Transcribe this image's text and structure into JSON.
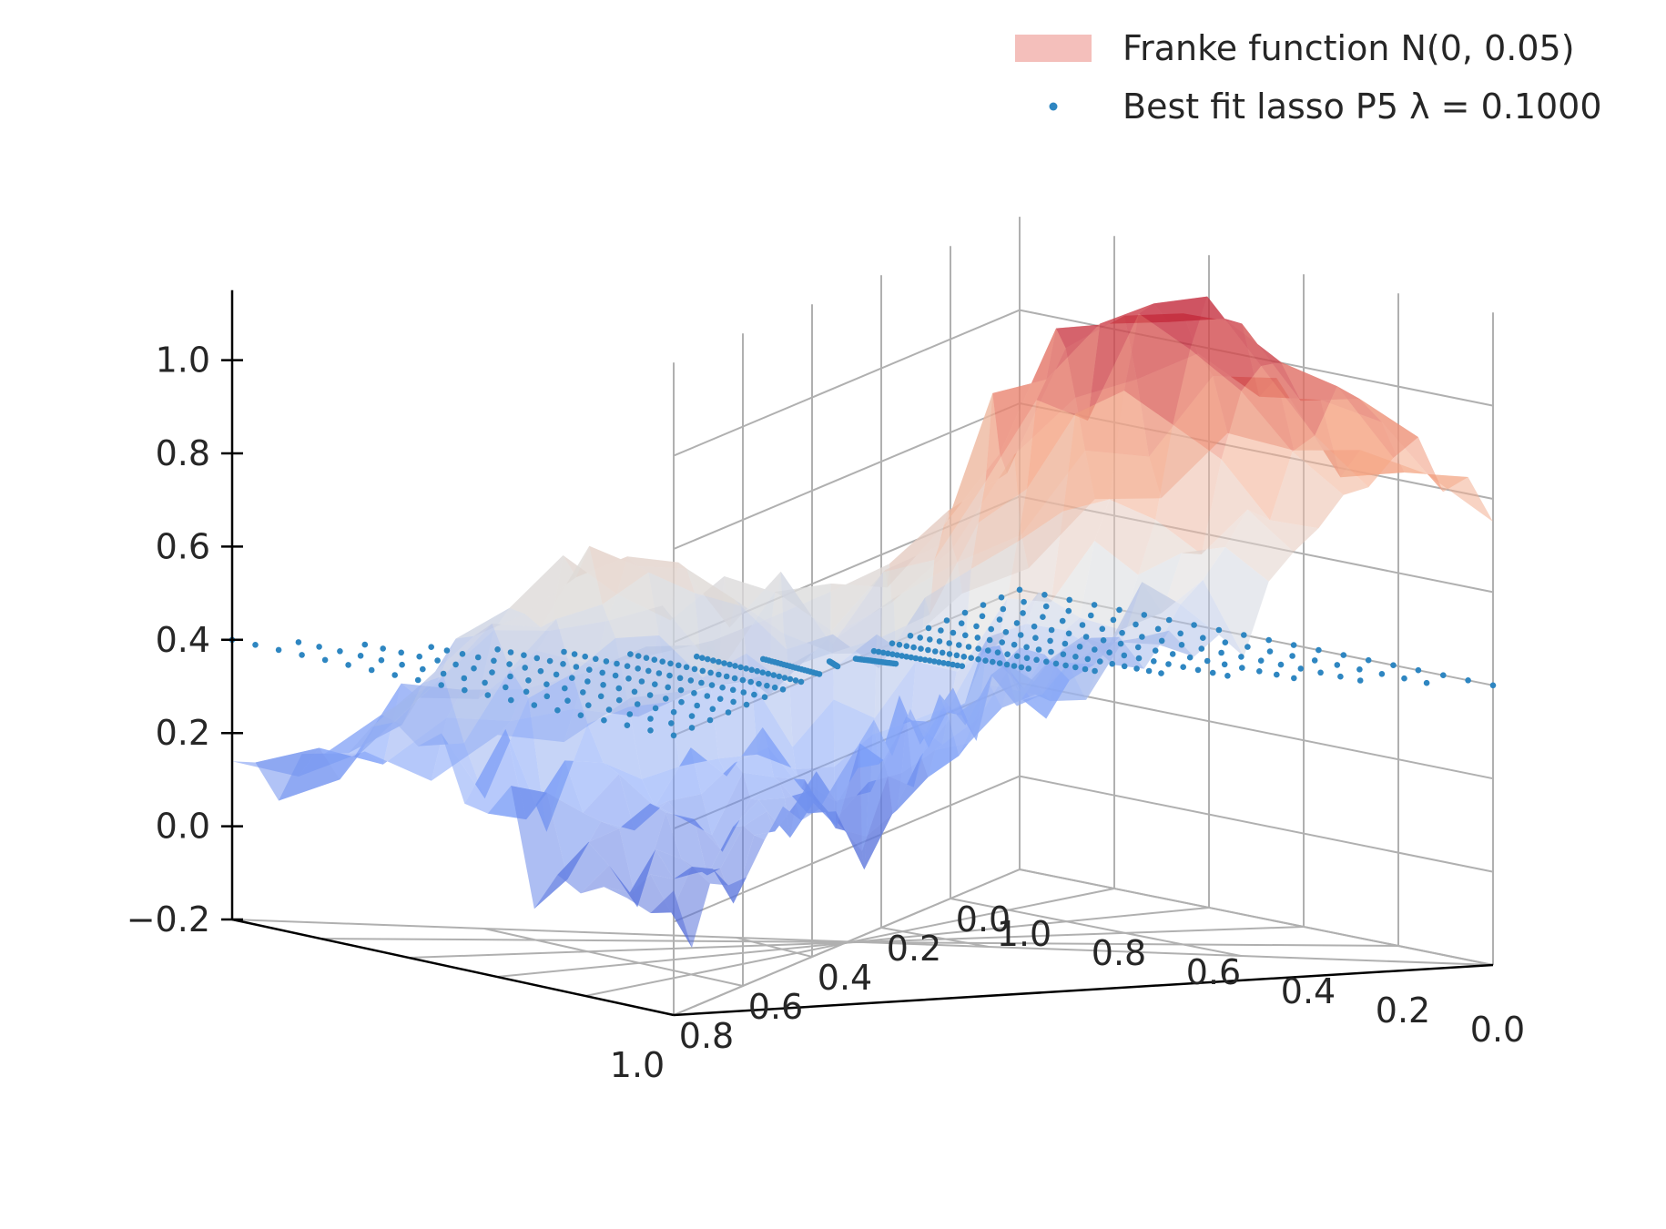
{
  "chart_data": {
    "type": "surface",
    "title": "",
    "xlabel": "",
    "ylabel": "",
    "zlabel": "",
    "xlim": [
      0,
      1
    ],
    "ylim": [
      0,
      1
    ],
    "zlim": [
      -0.2,
      1.2
    ],
    "x_ticks": [
      "0.0",
      "0.2",
      "0.4",
      "0.6",
      "0.8",
      "1.0"
    ],
    "y_ticks": [
      "0.0",
      "0.2",
      "0.4",
      "0.6",
      "0.8",
      "1.0"
    ],
    "z_ticks": [
      "−0.2",
      "0.0",
      "0.2",
      "0.4",
      "0.6",
      "0.8",
      "1.0"
    ],
    "grid": true,
    "legend_position": "top-right",
    "colormap": "coolwarm",
    "series": [
      {
        "name": "Franke function N(0, 0.05)",
        "kind": "surface",
        "noise_sd": 0.05,
        "z_min_approx": -0.15,
        "z_max_approx": 1.22,
        "color": "#f4bfbb"
      },
      {
        "name": "Best fit lasso P5 λ = 0.1000",
        "kind": "scatter",
        "grid_points": 20,
        "z_approx": 0.4,
        "color": "#2e86c1"
      }
    ]
  },
  "legend": {
    "entries": [
      {
        "label": "Franke function N(0, 0.05)",
        "color": "#f4bfbb",
        "marker": "patch"
      },
      {
        "label": "Best fit lasso P5 λ = 0.1000",
        "color": "#2e86c1",
        "marker": "dot"
      }
    ]
  }
}
